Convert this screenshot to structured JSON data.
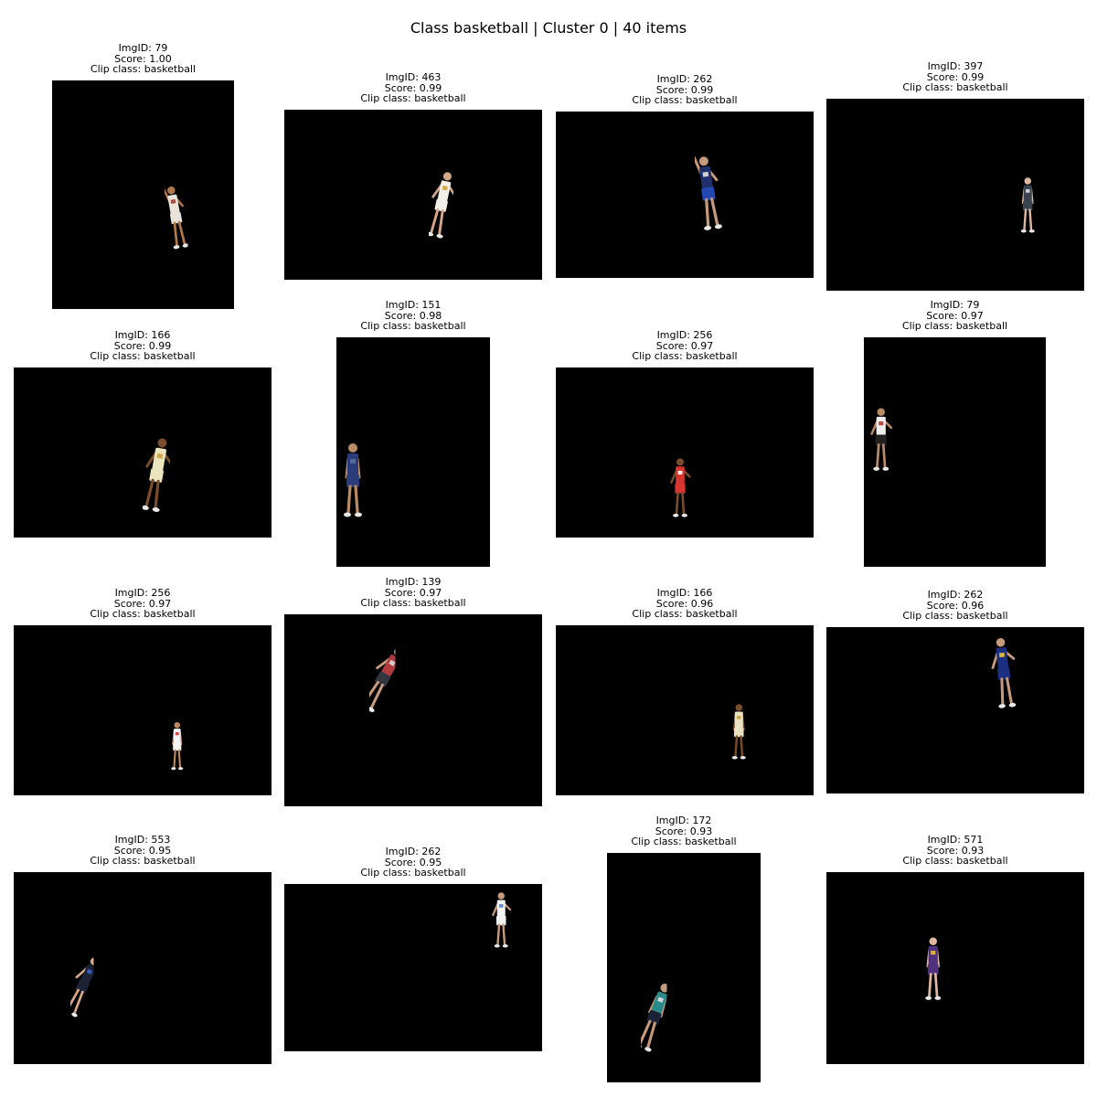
{
  "title": "Class basketball | Cluster 0 | 40 items",
  "items": [
    {
      "img_id": "ImgID: 79",
      "score": "Score: 1.00",
      "clip": "Clip class: basketball",
      "jersey": "#e9e3da",
      "skin": "#b0774a",
      "shorts": "#e9e3da",
      "accent": "#a8362c",
      "fx": 0.62,
      "fy": 0.45,
      "scale": 0.85,
      "lean": -10,
      "arms": "up"
    },
    {
      "img_id": "ImgID: 463",
      "score": "Score: 0.99",
      "clip": "Clip class: basketball",
      "jersey": "#f2efe6",
      "skin": "#d7a78a",
      "shorts": "#f2efe6",
      "accent": "#c9a43a",
      "fx": 0.56,
      "fy": 0.35,
      "scale": 0.9,
      "lean": 12,
      "arms": "side"
    },
    {
      "img_id": "ImgID: 262",
      "score": "Score: 0.99",
      "clip": "Clip class: basketball",
      "jersey": "#1f2f6b",
      "skin": "#c69a7c",
      "shorts": "#2348b2",
      "accent": "#e4e4e4",
      "fx": 0.54,
      "fy": 0.25,
      "scale": 1.0,
      "lean": -8,
      "arms": "up"
    },
    {
      "img_id": "ImgID: 397",
      "score": "Score: 0.99",
      "clip": "Clip class: basketball",
      "jersey": "#3a4450",
      "skin": "#e0b8a0",
      "shorts": "#3a4450",
      "accent": "#dddddd",
      "fx": 0.74,
      "fy": 0.4,
      "scale": 0.75,
      "lean": 0,
      "arms": "down"
    },
    {
      "img_id": "ImgID: 166",
      "score": "Score: 0.99",
      "clip": "Clip class: basketball",
      "jersey": "#ece3bf",
      "skin": "#7a4d2c",
      "shorts": "#ece3bf",
      "accent": "#c8a142",
      "fx": 0.5,
      "fy": 0.4,
      "scale": 1.0,
      "lean": 10,
      "arms": "side"
    },
    {
      "img_id": "ImgID: 151",
      "score": "Score: 0.98",
      "clip": "Clip class: basketball",
      "jersey": "#2b3c7a",
      "skin": "#b98a66",
      "shorts": "#2b3c7a",
      "accent": "#5a6aa0",
      "fx": 0.02,
      "fy": 0.45,
      "scale": 1.0,
      "lean": 0,
      "arms": "down"
    },
    {
      "img_id": "ImgID: 256",
      "score": "Score: 0.97",
      "clip": "Clip class: basketball",
      "jersey": "#d8352f",
      "skin": "#7a4d2c",
      "shorts": "#d8352f",
      "accent": "#ffffff",
      "fx": 0.44,
      "fy": 0.52,
      "scale": 0.8,
      "lean": 0,
      "arms": "side"
    },
    {
      "img_id": "ImgID: 79",
      "score": "Score: 0.97",
      "clip": "Clip class: basketball",
      "jersey": "#eeeeee",
      "skin": "#b98a66",
      "shorts": "#222222",
      "accent": "#b4342c",
      "fx": 0.03,
      "fy": 0.3,
      "scale": 0.85,
      "lean": 0,
      "arms": "side"
    },
    {
      "img_id": "ImgID: 256",
      "score": "Score: 0.97",
      "clip": "Clip class: basketball",
      "jersey": "#f5f5f5",
      "skin": "#c08863",
      "shorts": "#f5f5f5",
      "accent": "#d8352f",
      "fx": 0.6,
      "fy": 0.56,
      "scale": 0.65,
      "lean": 0,
      "arms": "down"
    },
    {
      "img_id": "ImgID: 139",
      "score": "Score: 0.97",
      "clip": "Clip class: basketball",
      "jersey": "#b03a3e",
      "skin": "#c69a7c",
      "shorts": "#33363c",
      "accent": "#dddddd",
      "fx": 0.33,
      "fy": 0.14,
      "scale": 0.95,
      "lean": 30,
      "arms": "side"
    },
    {
      "img_id": "ImgID: 166",
      "score": "Score: 0.96",
      "clip": "Clip class: basketball",
      "jersey": "#ebe2c4",
      "skin": "#7a4d2c",
      "shorts": "#ebe2c4",
      "accent": "#c8a142",
      "fx": 0.67,
      "fy": 0.45,
      "scale": 0.75,
      "lean": 0,
      "arms": "down"
    },
    {
      "img_id": "ImgID: 262",
      "score": "Score: 0.96",
      "clip": "Clip class: basketball",
      "jersey": "#1b2f80",
      "skin": "#c69a7c",
      "shorts": "#1b2f80",
      "accent": "#e8c43a",
      "fx": 0.64,
      "fy": 0.05,
      "scale": 0.95,
      "lean": -6,
      "arms": "side"
    },
    {
      "img_id": "ImgID: 553",
      "score": "Score: 0.95",
      "clip": "Clip class: basketball",
      "jersey": "#1c2236",
      "skin": "#d7a78a",
      "shorts": "#1c2236",
      "accent": "#3a62c8",
      "fx": 0.22,
      "fy": 0.42,
      "scale": 0.85,
      "lean": 25,
      "arms": "side"
    },
    {
      "img_id": "ImgID: 262",
      "score": "Score: 0.95",
      "clip": "Clip class: basketball",
      "jersey": "#f2f2f2",
      "skin": "#c69a7c",
      "shorts": "#f2f2f2",
      "accent": "#5a7ec8",
      "fx": 0.8,
      "fy": 0.04,
      "scale": 0.75,
      "lean": 0,
      "arms": "side"
    },
    {
      "img_id": "ImgID: 172",
      "score": "Score: 0.93",
      "clip": "Clip class: basketball",
      "jersey": "#2a8a8a",
      "skin": "#c69a7c",
      "shorts": "#1c2236",
      "accent": "#e0e0e0",
      "fx": 0.22,
      "fy": 0.55,
      "scale": 0.95,
      "lean": 20,
      "arms": "down"
    },
    {
      "img_id": "ImgID: 571",
      "score": "Score: 0.93",
      "clip": "Clip class: basketball",
      "jersey": "#51307e",
      "skin": "#e0b8a0",
      "shorts": "#51307e",
      "accent": "#e7c23a",
      "fx": 0.37,
      "fy": 0.33,
      "scale": 0.85,
      "lean": 0,
      "arms": "down"
    }
  ]
}
